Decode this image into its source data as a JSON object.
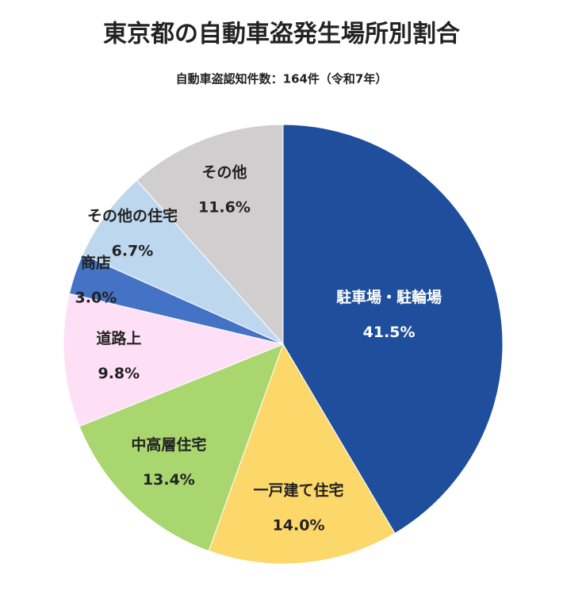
{
  "chart_data": {
    "type": "pie",
    "title": "東京都の自動車盗発生場所別割合",
    "subtitle": "自動車盗認知件数：164件（令和7年）",
    "categories": [
      "駐車場・駐輪場",
      "一戸建て住宅",
      "中高層住宅",
      "道路上",
      "商店",
      "その他の住宅",
      "その他"
    ],
    "values": [
      41.5,
      14.0,
      13.4,
      9.8,
      3.0,
      6.7,
      11.6
    ],
    "value_labels": [
      "41.5%",
      "14.0%",
      "13.4%",
      "9.8%",
      "3.0%",
      "6.7%",
      "11.6%"
    ],
    "colors": [
      "#1f4e9c",
      "#fcd76a",
      "#a9d66f",
      "#fde0f5",
      "#4472c4",
      "#bdd7ee",
      "#d0cece"
    ]
  }
}
